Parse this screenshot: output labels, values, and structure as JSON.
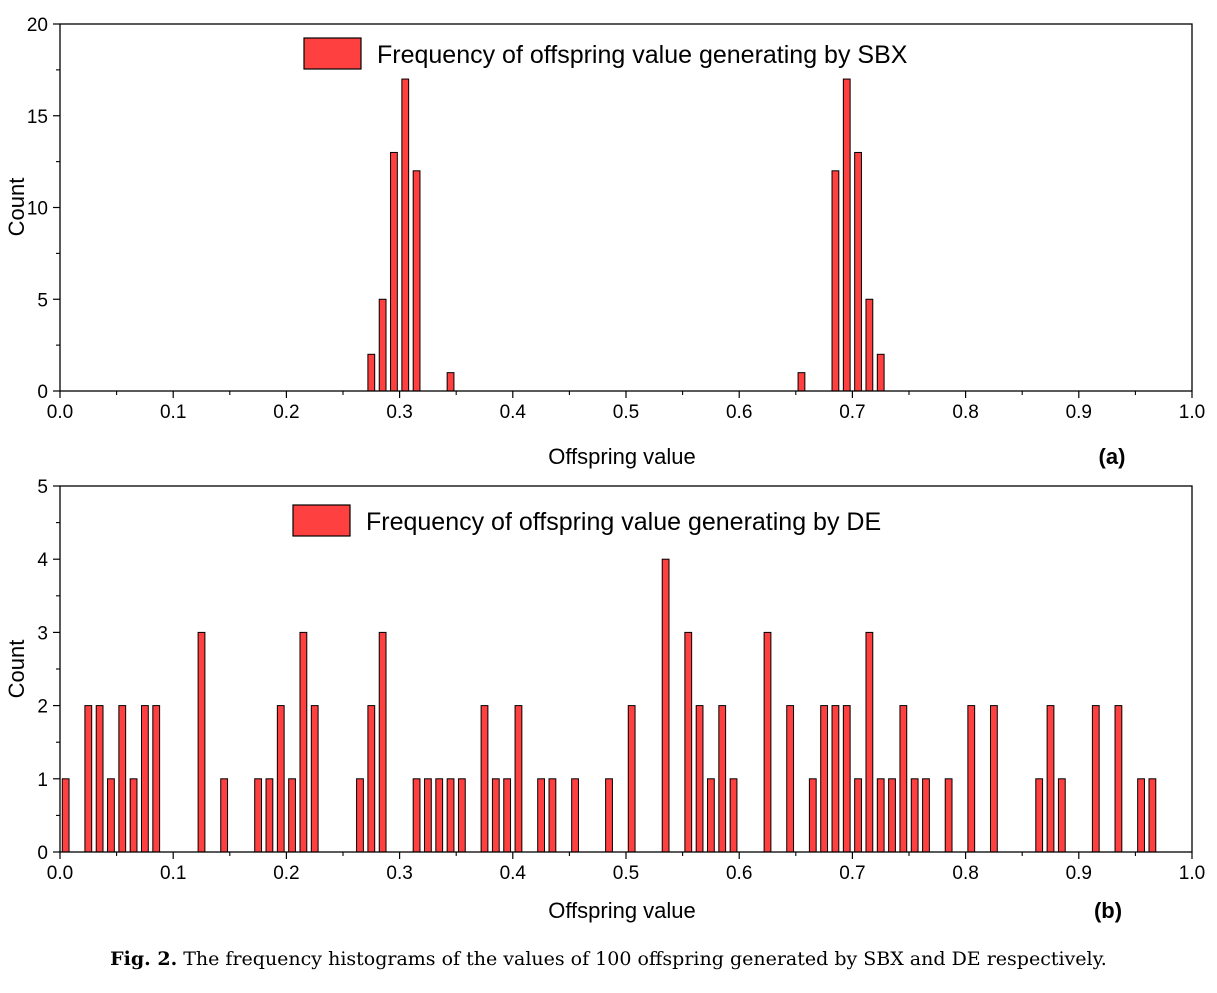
{
  "caption": {
    "label": "Fig. 2.",
    "text": "The frequency histograms of the values of 100 offspring generated by SBX and DE respectively."
  },
  "chart_data": [
    {
      "type": "bar",
      "panel_label": "(a)",
      "legend": "Frequency of offspring value generating by SBX",
      "legend_position": "top-center",
      "xlabel": "Offspring value",
      "ylabel": "Count",
      "xlim": [
        0.0,
        1.0
      ],
      "ylim": [
        0,
        20
      ],
      "xticks": [
        "0.0",
        "0.1",
        "0.2",
        "0.3",
        "0.4",
        "0.5",
        "0.6",
        "0.7",
        "0.8",
        "0.9",
        "1.0"
      ],
      "yticks": [
        "0",
        "5",
        "10",
        "15",
        "20"
      ],
      "bar_color": "#ff4040",
      "bin_width": 0.01,
      "bins": [
        {
          "x": 0.275,
          "y": 2
        },
        {
          "x": 0.285,
          "y": 5
        },
        {
          "x": 0.295,
          "y": 13
        },
        {
          "x": 0.305,
          "y": 17
        },
        {
          "x": 0.315,
          "y": 12
        },
        {
          "x": 0.345,
          "y": 1
        },
        {
          "x": 0.655,
          "y": 1
        },
        {
          "x": 0.685,
          "y": 12
        },
        {
          "x": 0.695,
          "y": 17
        },
        {
          "x": 0.705,
          "y": 13
        },
        {
          "x": 0.715,
          "y": 5
        },
        {
          "x": 0.725,
          "y": 2
        }
      ]
    },
    {
      "type": "bar",
      "panel_label": "(b)",
      "legend": "Frequency of offspring value generating by DE",
      "legend_position": "top-center",
      "xlabel": "Offspring value",
      "ylabel": "Count",
      "xlim": [
        0.0,
        1.0
      ],
      "ylim": [
        0,
        5
      ],
      "xticks": [
        "0.0",
        "0.1",
        "0.2",
        "0.3",
        "0.4",
        "0.5",
        "0.6",
        "0.7",
        "0.8",
        "0.9",
        "1.0"
      ],
      "yticks": [
        "0",
        "1",
        "2",
        "3",
        "4",
        "5"
      ],
      "bar_color": "#ff4040",
      "bin_width": 0.01,
      "bins": [
        {
          "x": 0.005,
          "y": 1
        },
        {
          "x": 0.025,
          "y": 2
        },
        {
          "x": 0.035,
          "y": 2
        },
        {
          "x": 0.045,
          "y": 1
        },
        {
          "x": 0.055,
          "y": 2
        },
        {
          "x": 0.065,
          "y": 1
        },
        {
          "x": 0.075,
          "y": 2
        },
        {
          "x": 0.085,
          "y": 2
        },
        {
          "x": 0.125,
          "y": 3
        },
        {
          "x": 0.145,
          "y": 1
        },
        {
          "x": 0.175,
          "y": 1
        },
        {
          "x": 0.185,
          "y": 1
        },
        {
          "x": 0.195,
          "y": 2
        },
        {
          "x": 0.205,
          "y": 1
        },
        {
          "x": 0.215,
          "y": 3
        },
        {
          "x": 0.225,
          "y": 2
        },
        {
          "x": 0.265,
          "y": 1
        },
        {
          "x": 0.275,
          "y": 2
        },
        {
          "x": 0.285,
          "y": 3
        },
        {
          "x": 0.315,
          "y": 1
        },
        {
          "x": 0.325,
          "y": 1
        },
        {
          "x": 0.335,
          "y": 1
        },
        {
          "x": 0.345,
          "y": 1
        },
        {
          "x": 0.355,
          "y": 1
        },
        {
          "x": 0.375,
          "y": 2
        },
        {
          "x": 0.385,
          "y": 1
        },
        {
          "x": 0.395,
          "y": 1
        },
        {
          "x": 0.405,
          "y": 2
        },
        {
          "x": 0.425,
          "y": 1
        },
        {
          "x": 0.435,
          "y": 1
        },
        {
          "x": 0.455,
          "y": 1
        },
        {
          "x": 0.485,
          "y": 1
        },
        {
          "x": 0.505,
          "y": 2
        },
        {
          "x": 0.535,
          "y": 4
        },
        {
          "x": 0.555,
          "y": 3
        },
        {
          "x": 0.565,
          "y": 2
        },
        {
          "x": 0.575,
          "y": 1
        },
        {
          "x": 0.585,
          "y": 2
        },
        {
          "x": 0.595,
          "y": 1
        },
        {
          "x": 0.625,
          "y": 3
        },
        {
          "x": 0.645,
          "y": 2
        },
        {
          "x": 0.665,
          "y": 1
        },
        {
          "x": 0.675,
          "y": 2
        },
        {
          "x": 0.685,
          "y": 2
        },
        {
          "x": 0.695,
          "y": 2
        },
        {
          "x": 0.705,
          "y": 1
        },
        {
          "x": 0.715,
          "y": 3
        },
        {
          "x": 0.725,
          "y": 1
        },
        {
          "x": 0.735,
          "y": 1
        },
        {
          "x": 0.745,
          "y": 2
        },
        {
          "x": 0.755,
          "y": 1
        },
        {
          "x": 0.765,
          "y": 1
        },
        {
          "x": 0.785,
          "y": 1
        },
        {
          "x": 0.805,
          "y": 2
        },
        {
          "x": 0.825,
          "y": 2
        },
        {
          "x": 0.865,
          "y": 1
        },
        {
          "x": 0.875,
          "y": 2
        },
        {
          "x": 0.885,
          "y": 1
        },
        {
          "x": 0.915,
          "y": 2
        },
        {
          "x": 0.935,
          "y": 2
        },
        {
          "x": 0.955,
          "y": 1
        },
        {
          "x": 0.965,
          "y": 1
        }
      ]
    }
  ]
}
